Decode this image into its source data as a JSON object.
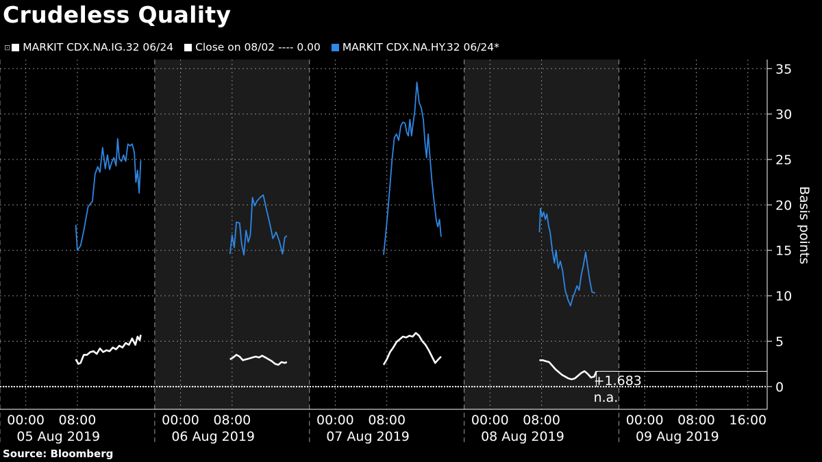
{
  "title": "Crudeless Quality",
  "source": "Source: Bloomberg",
  "legend": [
    {
      "label": "MARKIT CDX.NA.IG.32 06/24",
      "color": "#ffffff",
      "pin": "⊡"
    },
    {
      "label": "Close on 08/02 ---- 0.00",
      "color": "#ffffff"
    },
    {
      "label": "MARKIT CDX.NA.HY.32 06/24*",
      "color": "#2f87e6"
    }
  ],
  "chart_data": {
    "type": "line",
    "ylabel": "Basis points",
    "ylim": [
      -2.5,
      36
    ],
    "yticks": [
      0,
      5,
      10,
      15,
      20,
      25,
      30,
      35
    ],
    "xlim": [
      "2019-08-04 20:00",
      "2019-08-09 19:00"
    ],
    "x_tick_labels": [
      {
        "t": "2019-08-05 00:00",
        "label": "00:00"
      },
      {
        "t": "2019-08-05 08:00",
        "label": "08:00"
      },
      {
        "t": "2019-08-06 00:00",
        "label": "00:00"
      },
      {
        "t": "2019-08-06 08:00",
        "label": "08:00"
      },
      {
        "t": "2019-08-07 00:00",
        "label": "00:00"
      },
      {
        "t": "2019-08-07 08:00",
        "label": "08:00"
      },
      {
        "t": "2019-08-08 00:00",
        "label": "00:00"
      },
      {
        "t": "2019-08-08 08:00",
        "label": "08:00"
      },
      {
        "t": "2019-08-09 00:00",
        "label": "00:00"
      },
      {
        "t": "2019-08-09 08:00",
        "label": "08:00"
      },
      {
        "t": "2019-08-09 16:00",
        "label": "16:00"
      }
    ],
    "day_labels": [
      {
        "t": "2019-08-05 04:00",
        "label": "05 Aug 2019"
      },
      {
        "t": "2019-08-06 04:00",
        "label": "06 Aug 2019"
      },
      {
        "t": "2019-08-07 04:00",
        "label": "07 Aug 2019"
      },
      {
        "t": "2019-08-08 04:00",
        "label": "08 Aug 2019"
      },
      {
        "t": "2019-08-09 04:00",
        "label": "09 Aug 2019"
      }
    ],
    "day_boundaries": [
      "2019-08-05 20:00",
      "2019-08-06 20:00",
      "2019-08-07 20:00",
      "2019-08-08 20:00"
    ],
    "shaded_days": [
      [
        "2019-08-05 20:00",
        "2019-08-06 20:00"
      ],
      [
        "2019-08-07 20:00",
        "2019-08-08 20:00"
      ]
    ],
    "reference_line": {
      "value": 0.0,
      "label": "Close on 08/02"
    },
    "annotations": [
      {
        "text": "+1.683",
        "y": 1.683,
        "series": "MARKIT CDX.NA.IG.32 06/24"
      },
      {
        "text": "n.a.",
        "y": 0.0,
        "series": "Close on 08/02"
      }
    ],
    "series": [
      {
        "name": "MARKIT CDX.NA.HY.32 06/24*",
        "color": "#2f87e6",
        "segments": [
          [
            [
              "2019-08-05 07:45",
              17.8
            ],
            [
              "2019-08-05 08:00",
              15.0
            ],
            [
              "2019-08-05 08:30",
              15.5
            ],
            [
              "2019-08-05 09:00",
              17.2
            ],
            [
              "2019-08-05 09:40",
              19.8
            ],
            [
              "2019-08-05 10:20",
              20.4
            ],
            [
              "2019-08-05 10:45",
              23.4
            ],
            [
              "2019-08-05 11:10",
              24.2
            ],
            [
              "2019-08-05 11:30",
              23.6
            ],
            [
              "2019-08-05 11:55",
              26.3
            ],
            [
              "2019-08-05 12:20",
              24.0
            ],
            [
              "2019-08-05 12:40",
              25.5
            ],
            [
              "2019-08-05 13:00",
              23.9
            ],
            [
              "2019-08-05 13:20",
              24.7
            ],
            [
              "2019-08-05 13:40",
              25.2
            ],
            [
              "2019-08-05 14:00",
              24.3
            ],
            [
              "2019-08-05 14:15",
              27.3
            ],
            [
              "2019-08-05 14:30",
              25.1
            ],
            [
              "2019-08-05 14:50",
              24.8
            ],
            [
              "2019-08-05 15:10",
              25.5
            ],
            [
              "2019-08-05 15:30",
              24.8
            ],
            [
              "2019-08-05 15:50",
              26.7
            ],
            [
              "2019-08-05 16:10",
              26.5
            ],
            [
              "2019-08-05 16:30",
              26.7
            ],
            [
              "2019-08-05 16:50",
              25.8
            ],
            [
              "2019-08-05 17:05",
              22.5
            ],
            [
              "2019-08-05 17:20",
              23.8
            ],
            [
              "2019-08-05 17:35",
              21.3
            ],
            [
              "2019-08-05 17:50",
              24.9
            ]
          ],
          [
            [
              "2019-08-06 07:40",
              14.6
            ],
            [
              "2019-08-06 08:00",
              16.7
            ],
            [
              "2019-08-06 08:20",
              15.3
            ],
            [
              "2019-08-06 08:40",
              18.1
            ],
            [
              "2019-08-06 09:10",
              18.0
            ],
            [
              "2019-08-06 09:30",
              15.6
            ],
            [
              "2019-08-06 09:50",
              14.5
            ],
            [
              "2019-08-06 10:10",
              17.2
            ],
            [
              "2019-08-06 10:30",
              15.9
            ],
            [
              "2019-08-06 10:50",
              16.7
            ],
            [
              "2019-08-06 11:10",
              20.8
            ],
            [
              "2019-08-06 11:30",
              19.9
            ],
            [
              "2019-08-06 11:50",
              20.4
            ],
            [
              "2019-08-06 12:20",
              20.8
            ],
            [
              "2019-08-06 12:50",
              21.1
            ],
            [
              "2019-08-06 13:20",
              19.5
            ],
            [
              "2019-08-06 13:50",
              18.0
            ],
            [
              "2019-08-06 14:20",
              16.3
            ],
            [
              "2019-08-06 14:50",
              17.0
            ],
            [
              "2019-08-06 15:20",
              16.0
            ],
            [
              "2019-08-06 15:50",
              14.6
            ],
            [
              "2019-08-06 16:10",
              16.4
            ],
            [
              "2019-08-06 16:30",
              16.6
            ]
          ],
          [
            [
              "2019-08-07 07:30",
              14.5
            ],
            [
              "2019-08-07 07:50",
              16.8
            ],
            [
              "2019-08-07 08:10",
              19.4
            ],
            [
              "2019-08-07 08:30",
              22.2
            ],
            [
              "2019-08-07 08:50",
              25.1
            ],
            [
              "2019-08-07 09:10",
              27.4
            ],
            [
              "2019-08-07 09:30",
              27.8
            ],
            [
              "2019-08-07 09:50",
              27.1
            ],
            [
              "2019-08-07 10:10",
              28.7
            ],
            [
              "2019-08-07 10:30",
              29.1
            ],
            [
              "2019-08-07 10:50",
              29.0
            ],
            [
              "2019-08-07 11:05",
              28.0
            ],
            [
              "2019-08-07 11:20",
              27.6
            ],
            [
              "2019-08-07 11:35",
              29.4
            ],
            [
              "2019-08-07 11:50",
              27.6
            ],
            [
              "2019-08-07 12:05",
              29.0
            ],
            [
              "2019-08-07 12:20",
              30.3
            ],
            [
              "2019-08-07 12:40",
              33.5
            ],
            [
              "2019-08-07 13:00",
              31.3
            ],
            [
              "2019-08-07 13:20",
              30.7
            ],
            [
              "2019-08-07 13:40",
              29.4
            ],
            [
              "2019-08-07 13:55",
              26.9
            ],
            [
              "2019-08-07 14:10",
              25.2
            ],
            [
              "2019-08-07 14:25",
              27.8
            ],
            [
              "2019-08-07 14:40",
              25.4
            ],
            [
              "2019-08-07 15:00",
              22.6
            ],
            [
              "2019-08-07 15:20",
              20.4
            ],
            [
              "2019-08-07 15:40",
              18.3
            ],
            [
              "2019-08-07 15:55",
              17.6
            ],
            [
              "2019-08-07 16:10",
              18.4
            ],
            [
              "2019-08-07 16:25",
              16.5
            ]
          ],
          [
            [
              "2019-08-08 07:40",
              17.0
            ],
            [
              "2019-08-08 07:50",
              19.6
            ],
            [
              "2019-08-08 08:05",
              18.7
            ],
            [
              "2019-08-08 08:20",
              19.2
            ],
            [
              "2019-08-08 08:35",
              18.4
            ],
            [
              "2019-08-08 08:50",
              19.0
            ],
            [
              "2019-08-08 09:05",
              17.7
            ],
            [
              "2019-08-08 09:20",
              17.0
            ],
            [
              "2019-08-08 09:40",
              15.0
            ],
            [
              "2019-08-08 10:00",
              13.6
            ],
            [
              "2019-08-08 10:15",
              15.0
            ],
            [
              "2019-08-08 10:35",
              13.0
            ],
            [
              "2019-08-08 10:55",
              13.8
            ],
            [
              "2019-08-08 11:15",
              12.8
            ],
            [
              "2019-08-08 11:40",
              10.6
            ],
            [
              "2019-08-08 12:05",
              9.6
            ],
            [
              "2019-08-08 12:30",
              8.9
            ],
            [
              "2019-08-08 12:50",
              9.8
            ],
            [
              "2019-08-08 13:10",
              10.4
            ],
            [
              "2019-08-08 13:30",
              11.1
            ],
            [
              "2019-08-08 13:50",
              10.6
            ],
            [
              "2019-08-08 14:10",
              12.3
            ],
            [
              "2019-08-08 14:30",
              13.4
            ],
            [
              "2019-08-08 14:50",
              14.8
            ],
            [
              "2019-08-08 15:10",
              13.2
            ],
            [
              "2019-08-08 15:30",
              11.6
            ],
            [
              "2019-08-08 15:50",
              10.4
            ],
            [
              "2019-08-08 16:20",
              10.3
            ]
          ]
        ]
      },
      {
        "name": "MARKIT CDX.NA.IG.32 06/24",
        "color": "#ffffff",
        "segments": [
          [
            [
              "2019-08-05 07:45",
              3.0
            ],
            [
              "2019-08-05 08:10",
              2.5
            ],
            [
              "2019-08-05 08:30",
              2.6
            ],
            [
              "2019-08-05 09:00",
              3.5
            ],
            [
              "2019-08-05 09:30",
              3.5
            ],
            [
              "2019-08-05 10:00",
              3.8
            ],
            [
              "2019-08-05 10:30",
              3.9
            ],
            [
              "2019-08-05 11:00",
              3.6
            ],
            [
              "2019-08-05 11:30",
              4.2
            ],
            [
              "2019-08-05 12:00",
              3.8
            ],
            [
              "2019-08-05 12:30",
              4.0
            ],
            [
              "2019-08-05 13:00",
              3.9
            ],
            [
              "2019-08-05 13:30",
              4.3
            ],
            [
              "2019-08-05 14:00",
              4.1
            ],
            [
              "2019-08-05 14:30",
              4.5
            ],
            [
              "2019-08-05 15:00",
              4.3
            ],
            [
              "2019-08-05 15:30",
              4.8
            ],
            [
              "2019-08-05 16:00",
              4.6
            ],
            [
              "2019-08-05 16:30",
              5.3
            ],
            [
              "2019-08-05 17:00",
              4.6
            ],
            [
              "2019-08-05 17:20",
              5.5
            ],
            [
              "2019-08-05 17:40",
              5.1
            ],
            [
              "2019-08-05 17:50",
              5.7
            ]
          ],
          [
            [
              "2019-08-06 07:40",
              3.0
            ],
            [
              "2019-08-06 08:10",
              3.2
            ],
            [
              "2019-08-06 08:40",
              3.5
            ],
            [
              "2019-08-06 09:10",
              3.3
            ],
            [
              "2019-08-06 09:40",
              2.9
            ],
            [
              "2019-08-06 10:10",
              3.0
            ],
            [
              "2019-08-06 10:40",
              3.1
            ],
            [
              "2019-08-06 11:10",
              3.2
            ],
            [
              "2019-08-06 11:40",
              3.3
            ],
            [
              "2019-08-06 12:10",
              3.2
            ],
            [
              "2019-08-06 12:40",
              3.4
            ],
            [
              "2019-08-06 13:10",
              3.2
            ],
            [
              "2019-08-06 13:40",
              3.0
            ],
            [
              "2019-08-06 14:10",
              2.8
            ],
            [
              "2019-08-06 14:40",
              2.5
            ],
            [
              "2019-08-06 15:10",
              2.4
            ],
            [
              "2019-08-06 15:40",
              2.7
            ],
            [
              "2019-08-06 16:10",
              2.6
            ],
            [
              "2019-08-06 16:30",
              2.7
            ]
          ],
          [
            [
              "2019-08-07 07:30",
              2.4
            ],
            [
              "2019-08-07 08:00",
              3.0
            ],
            [
              "2019-08-07 08:30",
              3.8
            ],
            [
              "2019-08-07 09:00",
              4.3
            ],
            [
              "2019-08-07 09:30",
              4.9
            ],
            [
              "2019-08-07 10:00",
              5.2
            ],
            [
              "2019-08-07 10:30",
              5.5
            ],
            [
              "2019-08-07 11:00",
              5.4
            ],
            [
              "2019-08-07 11:30",
              5.6
            ],
            [
              "2019-08-07 12:00",
              5.5
            ],
            [
              "2019-08-07 12:30",
              5.9
            ],
            [
              "2019-08-07 13:00",
              5.6
            ],
            [
              "2019-08-07 13:30",
              5.0
            ],
            [
              "2019-08-07 14:00",
              4.6
            ],
            [
              "2019-08-07 14:30",
              4.0
            ],
            [
              "2019-08-07 15:00",
              3.3
            ],
            [
              "2019-08-07 15:30",
              2.6
            ],
            [
              "2019-08-07 16:00",
              3.0
            ],
            [
              "2019-08-07 16:25",
              3.3
            ]
          ],
          [
            [
              "2019-08-08 07:40",
              2.9
            ],
            [
              "2019-08-08 08:10",
              2.9
            ],
            [
              "2019-08-08 08:40",
              2.8
            ],
            [
              "2019-08-08 09:10",
              2.7
            ],
            [
              "2019-08-08 09:40",
              2.3
            ],
            [
              "2019-08-08 10:10",
              1.9
            ],
            [
              "2019-08-08 10:40",
              1.6
            ],
            [
              "2019-08-08 11:10",
              1.3
            ],
            [
              "2019-08-08 11:40",
              1.1
            ],
            [
              "2019-08-08 12:10",
              0.9
            ],
            [
              "2019-08-08 12:40",
              0.8
            ],
            [
              "2019-08-08 13:10",
              0.9
            ],
            [
              "2019-08-08 13:40",
              1.2
            ],
            [
              "2019-08-08 14:10",
              1.5
            ],
            [
              "2019-08-08 14:40",
              1.7
            ],
            [
              "2019-08-08 15:10",
              1.4
            ],
            [
              "2019-08-08 15:40",
              1.0
            ],
            [
              "2019-08-08 16:10",
              1.1
            ],
            [
              "2019-08-08 16:30",
              1.683
            ]
          ]
        ]
      }
    ]
  }
}
